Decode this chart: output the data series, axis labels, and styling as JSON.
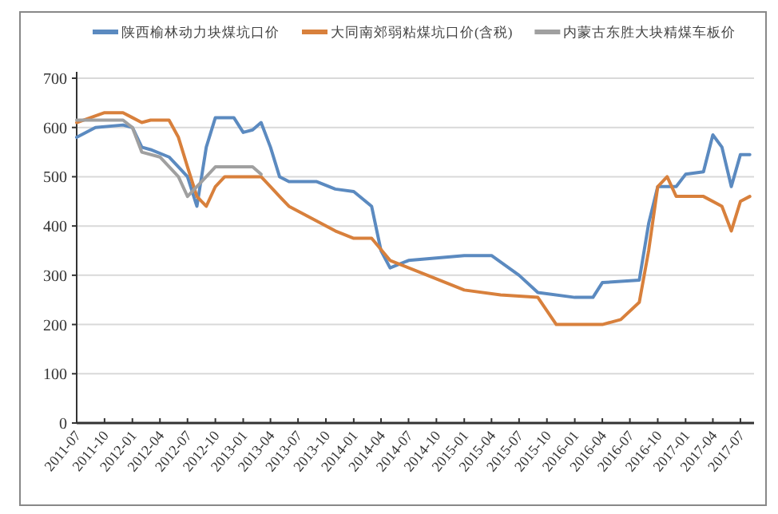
{
  "chart_data": {
    "type": "line",
    "ylim": [
      0,
      700
    ],
    "yticks": [
      0,
      100,
      200,
      300,
      400,
      500,
      600,
      700
    ],
    "xlim": [
      "2011-07",
      "2017-08-15"
    ],
    "xticks": [
      "2011-07",
      "2011-10",
      "2012-01",
      "2012-04",
      "2012-07",
      "2012-10",
      "2013-01",
      "2013-04",
      "2013-07",
      "2013-10",
      "2014-01",
      "2014-04",
      "2014-07",
      "2014-10",
      "2015-01",
      "2015-04",
      "2015-07",
      "2015-10",
      "2016-01",
      "2016-04",
      "2016-07",
      "2016-10",
      "2017-01",
      "2017-04",
      "2017-07"
    ],
    "grid": "y",
    "legend": "top",
    "marker": "none",
    "line_style": "solid",
    "series": [
      {
        "name": "陕西榆林动力块煤坑口价",
        "color": "#5b8ac0",
        "x": [
          "2011-07",
          "2011-09",
          "2011-12",
          "2012-01",
          "2012-02",
          "2012-03",
          "2012-05",
          "2012-06",
          "2012-07",
          "2012-08",
          "2012-09",
          "2012-10",
          "2012-12",
          "2013-01",
          "2013-02",
          "2013-03",
          "2013-04",
          "2013-05",
          "2013-06",
          "2013-09",
          "2013-11",
          "2014-01",
          "2014-03",
          "2014-04",
          "2014-05",
          "2014-07",
          "2015-01",
          "2015-04",
          "2015-07",
          "2015-09",
          "2016-01",
          "2016-03",
          "2016-04",
          "2016-08",
          "2016-09",
          "2016-10",
          "2016-12",
          "2017-01",
          "2017-03",
          "2017-04",
          "2017-05",
          "2017-06",
          "2017-07",
          "2017-08"
        ],
        "values": [
          580,
          600,
          605,
          600,
          560,
          555,
          540,
          520,
          500,
          440,
          560,
          620,
          620,
          590,
          595,
          610,
          560,
          500,
          490,
          490,
          475,
          470,
          440,
          350,
          315,
          330,
          340,
          340,
          300,
          265,
          255,
          255,
          285,
          290,
          405,
          480,
          480,
          505,
          510,
          585,
          560,
          480,
          545,
          545
        ]
      },
      {
        "name": "大同南郊弱粘煤坑口价(含税)",
        "color": "#d8803c",
        "x": [
          "2011-07",
          "2011-10",
          "2011-12",
          "2012-01",
          "2012-02",
          "2012-03",
          "2012-05",
          "2012-06",
          "2012-07",
          "2012-08",
          "2012-09",
          "2012-10",
          "2012-11",
          "2013-03",
          "2013-04",
          "2013-05",
          "2013-06",
          "2013-08",
          "2013-11",
          "2014-01",
          "2014-03",
          "2014-05",
          "2014-09",
          "2015-01",
          "2015-05",
          "2015-09",
          "2015-11",
          "2016-04",
          "2016-06",
          "2016-08",
          "2016-09",
          "2016-10",
          "2016-11",
          "2016-12",
          "2017-03",
          "2017-05",
          "2017-06",
          "2017-07",
          "2017-08"
        ],
        "values": [
          610,
          630,
          630,
          620,
          610,
          615,
          615,
          580,
          520,
          460,
          440,
          480,
          500,
          500,
          480,
          460,
          440,
          420,
          390,
          375,
          375,
          330,
          300,
          270,
          260,
          255,
          200,
          200,
          210,
          245,
          350,
          480,
          500,
          460,
          460,
          440,
          390,
          450,
          460
        ]
      },
      {
        "name": "内蒙古东胜大块精煤车板价",
        "color": "#a0a0a0",
        "x": [
          "2011-07",
          "2011-12",
          "2012-01",
          "2012-02",
          "2012-04",
          "2012-06",
          "2012-07",
          "2012-09",
          "2012-10",
          "2013-02",
          "2013-03"
        ],
        "values": [
          615,
          615,
          600,
          550,
          540,
          500,
          460,
          500,
          520,
          520,
          505
        ]
      }
    ]
  }
}
